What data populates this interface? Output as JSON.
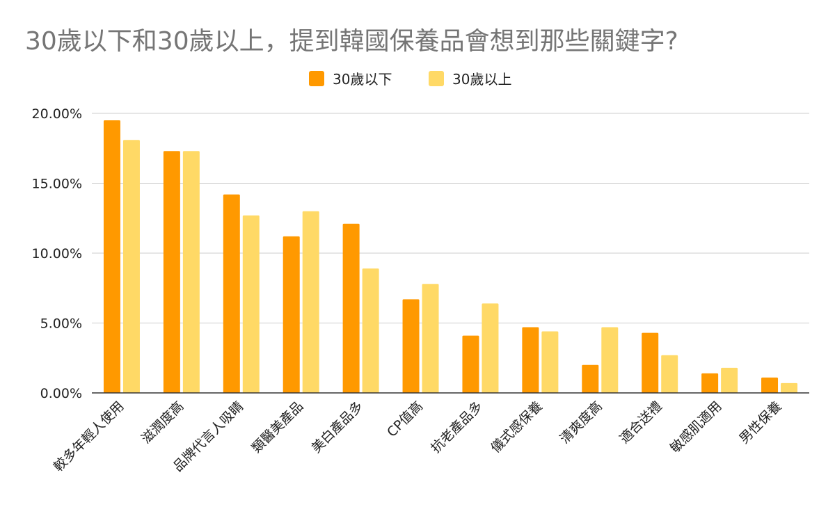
{
  "chart_data": {
    "type": "bar",
    "title": "30歲以下和30歲以上，提到韓國保養品會想到那些關鍵字?",
    "xlabel": "",
    "ylabel": "",
    "categories": [
      "較多年輕人使用",
      "滋潤度高",
      "品牌代言人吸睛",
      "類醫美產品",
      "美白產品多",
      "CP值高",
      "抗老產品多",
      "儀式感保養",
      "清爽度高",
      "適合送禮",
      "敏感肌適用",
      "男性保養"
    ],
    "series": [
      {
        "name": "30歲以下",
        "color": "#ff9900",
        "values": [
          19.5,
          17.3,
          14.2,
          11.2,
          12.1,
          6.7,
          4.1,
          4.7,
          2.0,
          4.3,
          1.4,
          1.1
        ]
      },
      {
        "name": "30歲以上",
        "color": "#ffd966",
        "values": [
          18.1,
          17.3,
          12.7,
          13.0,
          8.9,
          7.8,
          6.4,
          4.4,
          4.7,
          2.7,
          1.8,
          0.7
        ]
      }
    ],
    "ylim": [
      0,
      20
    ],
    "yticks": [
      "0.00%",
      "5.00%",
      "10.00%",
      "15.00%",
      "20.00%"
    ],
    "grid": true,
    "legend_position": "top-center"
  }
}
